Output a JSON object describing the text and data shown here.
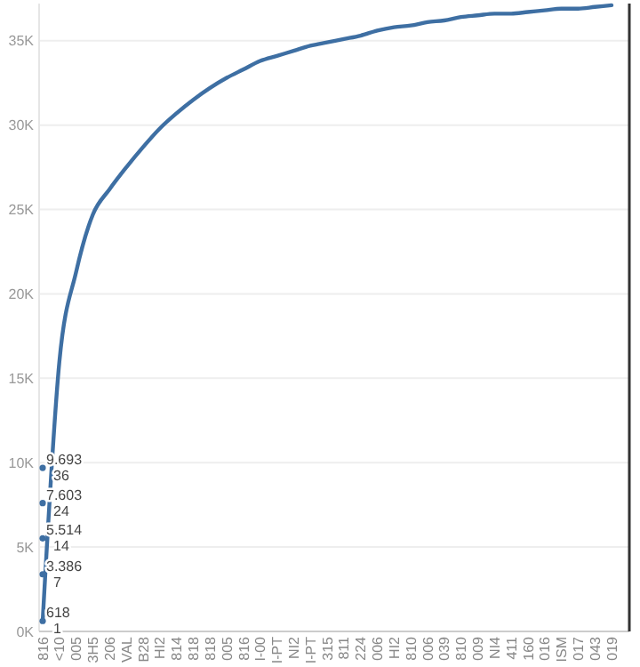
{
  "chart_data": {
    "type": "line",
    "categories": [
      "816",
      "<10",
      "005",
      "3H5",
      "206",
      "VAL",
      "B28",
      "HI2",
      "814",
      "818",
      "818",
      "005",
      "816",
      "I-00",
      "I-PT",
      "NI2",
      "I-PT",
      "315",
      "811",
      "224",
      "006",
      "HI2",
      "810",
      "006",
      "039",
      "810",
      "009",
      "NI4",
      "411",
      "160",
      "016",
      "ISM",
      "017",
      "043",
      "019"
    ],
    "series": [
      {
        "color": "#3e6fa3",
        "values": [
          600,
          16000,
          21300,
          24700,
          26200,
          27500,
          28700,
          29800,
          30700,
          31500,
          32200,
          32800,
          33300,
          33800,
          34100,
          34400,
          34700,
          34900,
          35100,
          35300,
          35600,
          35800,
          35900,
          36100,
          36200,
          36400,
          36500,
          36600,
          36600,
          36700,
          36800,
          36900,
          36900,
          37000,
          37100
        ]
      }
    ],
    "ylim": [
      0,
      37200
    ],
    "yticks": [
      {
        "value": 0,
        "label": "0K"
      },
      {
        "value": 5000,
        "label": "5K"
      },
      {
        "value": 10000,
        "label": "10K"
      },
      {
        "value": 15000,
        "label": "15K"
      },
      {
        "value": 20000,
        "label": "20K"
      },
      {
        "value": 25000,
        "label": "25K"
      },
      {
        "value": 30000,
        "label": "30K"
      },
      {
        "value": 35000,
        "label": "35K"
      }
    ],
    "grid": "y",
    "marker": "none",
    "line_style": "solid",
    "annotations": [
      {
        "text": "618\n1",
        "x": "816",
        "y": 618
      },
      {
        "text": "3.386\n7",
        "x": "816",
        "y": 3386
      },
      {
        "text": "5.514\n14",
        "x": "816",
        "y": 5514
      },
      {
        "text": "7.603\n24",
        "x": "816",
        "y": 7603
      },
      {
        "text": "9.693\n36",
        "x": "816",
        "y": 9693
      }
    ]
  }
}
